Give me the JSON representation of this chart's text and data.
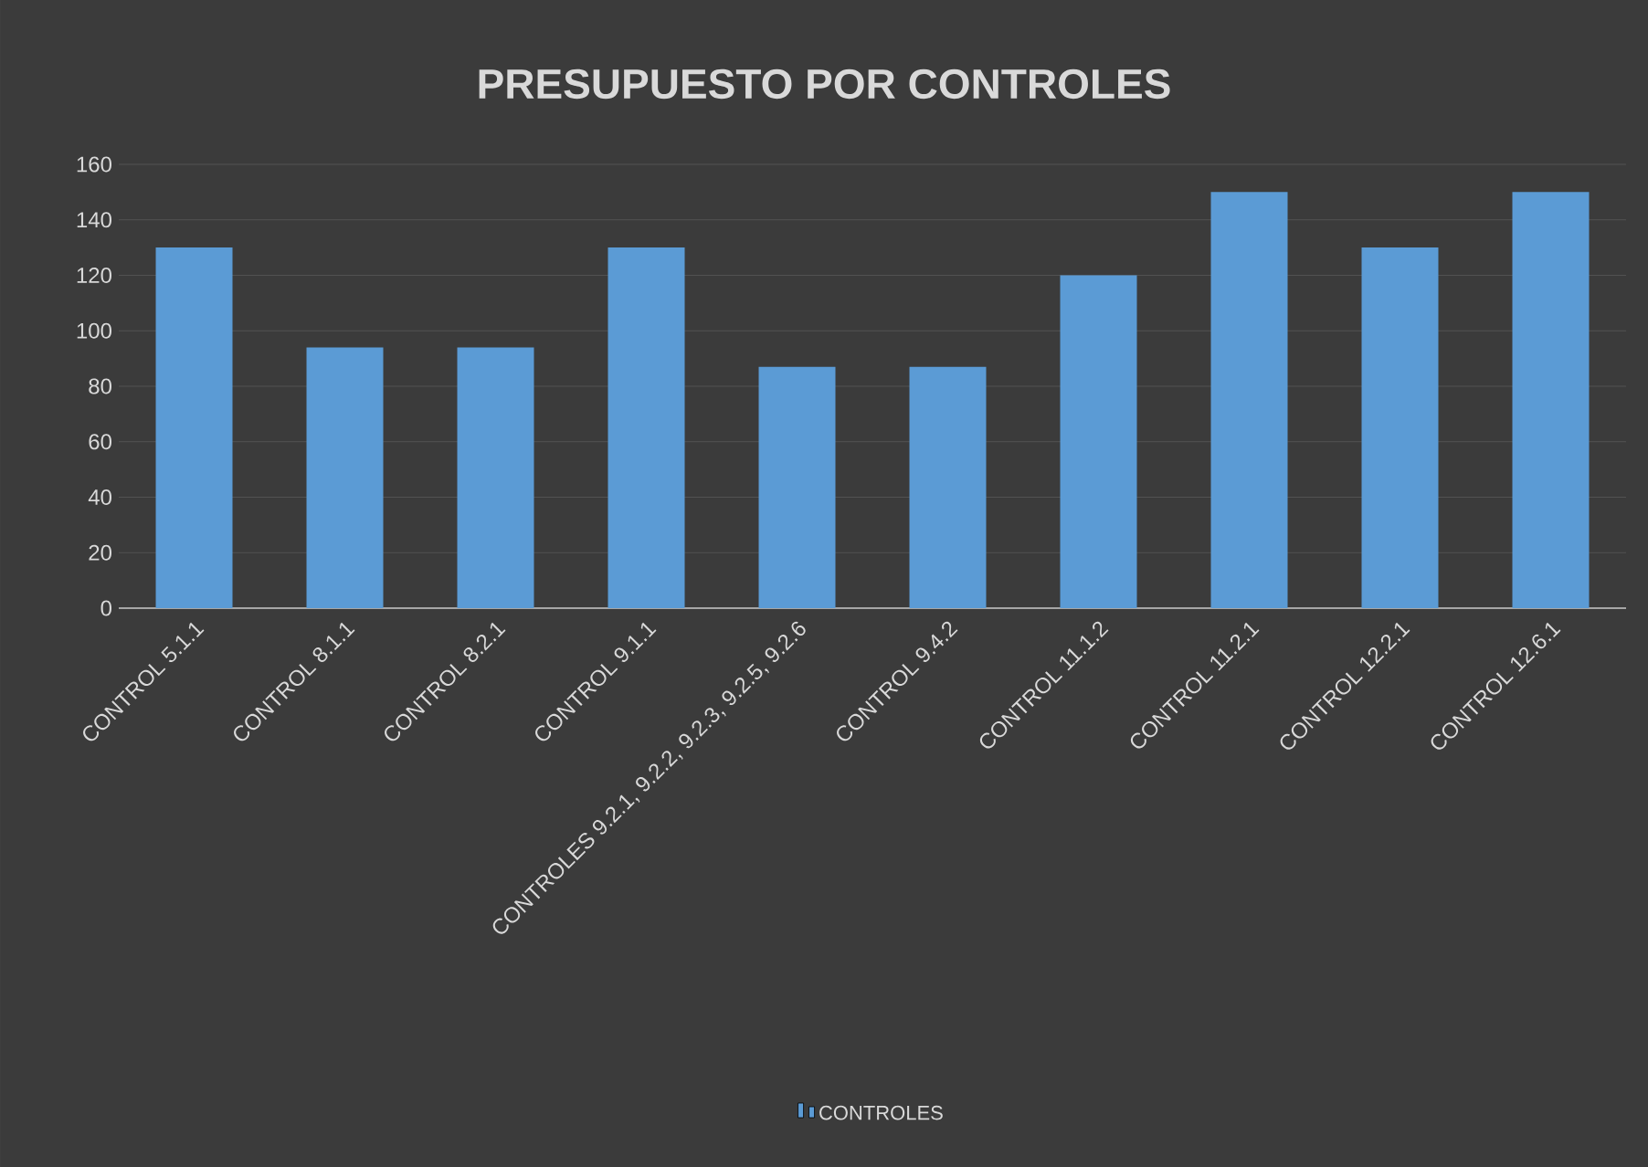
{
  "chart_data": {
    "type": "bar",
    "title": "PRESUPUESTO POR CONTROLES",
    "categories": [
      "CONTROL 5.1.1",
      "CONTROL 8.1.1",
      "CONTROL 8.2.1",
      "CONTROL 9.1.1",
      "CONTROLES 9.2.1, 9.2.2, 9.2.3, 9.2.5, 9.2.6",
      "CONTROL 9.4.2",
      "CONTROL 11.1.2",
      "CONTROL 11.2.1",
      "CONTROL 12.2.1",
      "CONTROL 12.6.1"
    ],
    "series": [
      {
        "name": "CONTROLES",
        "color": "#5b9bd5",
        "values": [
          130,
          94,
          94,
          130,
          87,
          87,
          120,
          150,
          130,
          150
        ]
      }
    ],
    "ylim": [
      0,
      160
    ],
    "yticks": [
      0,
      20,
      40,
      60,
      80,
      100,
      120,
      140,
      160
    ],
    "grid": "y",
    "legend": "bottom"
  }
}
